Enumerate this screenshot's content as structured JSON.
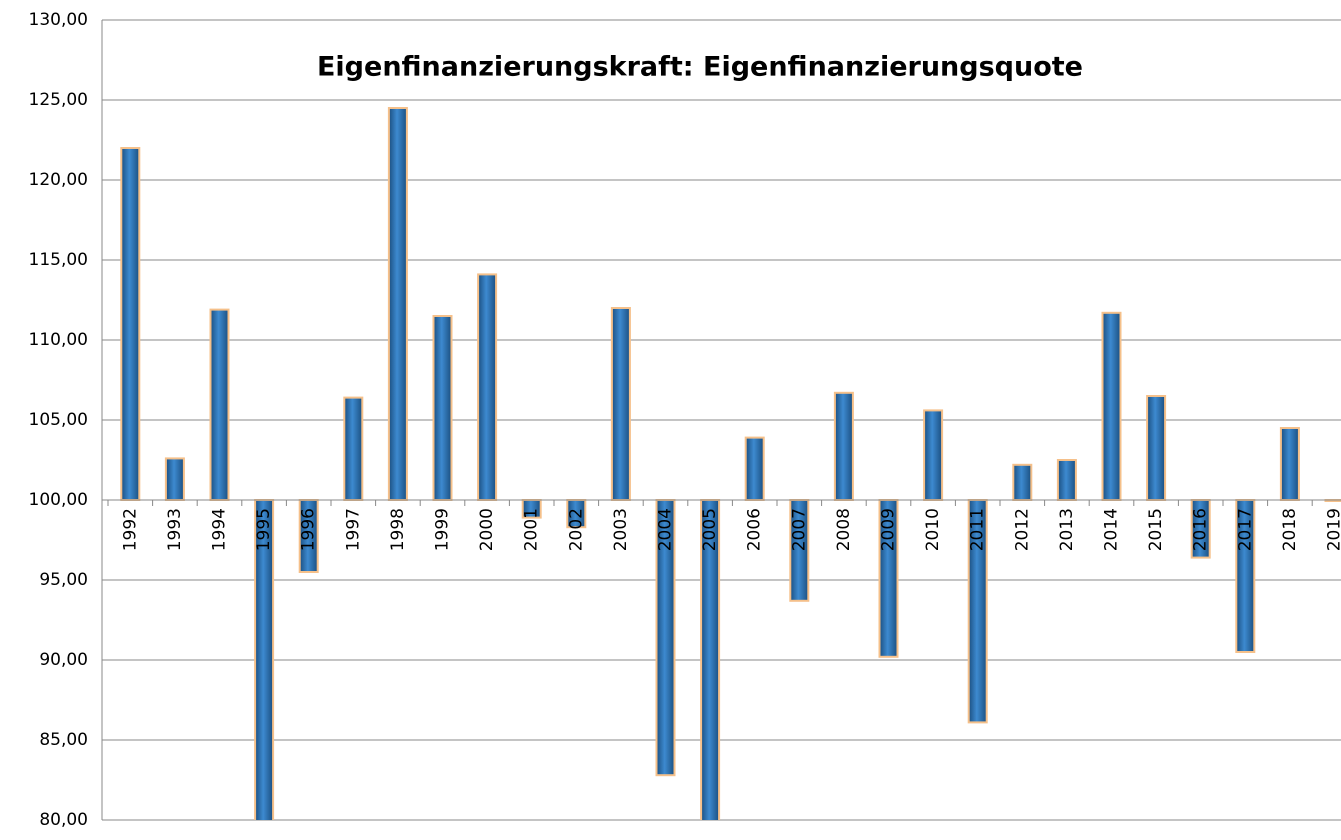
{
  "chart_data": {
    "type": "bar",
    "title": "Eigenfinanzierungskraft: Eigenfinanzierungsquote",
    "categories": [
      "1992",
      "1993",
      "1994",
      "1995",
      "1996",
      "1997",
      "1998",
      "1999",
      "2000",
      "2001",
      "2002",
      "2003",
      "2004",
      "2005",
      "2006",
      "2007",
      "2008",
      "2009",
      "2010",
      "2011",
      "2012",
      "2013",
      "2014",
      "2015",
      "2016",
      "2017",
      "2018",
      "2019"
    ],
    "values": [
      122.0,
      102.6,
      111.9,
      78,
      95.5,
      106.4,
      124.5,
      111.5,
      114.1,
      98.9,
      98.3,
      112.0,
      82.8,
      78,
      103.9,
      93.7,
      106.7,
      90.2,
      105.6,
      86.1,
      102.2,
      102.5,
      111.7,
      106.5,
      96.4,
      90.5,
      104.5,
      100.0
    ],
    "color": "#2e75b6",
    "baseline": 100,
    "ylim": [
      80,
      130
    ],
    "yticks": [
      {
        "value": 80,
        "label": "80,00"
      },
      {
        "value": 85,
        "label": "85,00"
      },
      {
        "value": 90,
        "label": "90,00"
      },
      {
        "value": 95,
        "label": "95,00"
      },
      {
        "value": 100,
        "label": "100,00"
      },
      {
        "value": 105,
        "label": "105,00"
      },
      {
        "value": 110,
        "label": "110,00"
      },
      {
        "value": 115,
        "label": "115,00"
      },
      {
        "value": 120,
        "label": "120,00"
      },
      {
        "value": 125,
        "label": "125,00"
      },
      {
        "value": 130,
        "label": "130,00"
      }
    ],
    "grid": true
  }
}
